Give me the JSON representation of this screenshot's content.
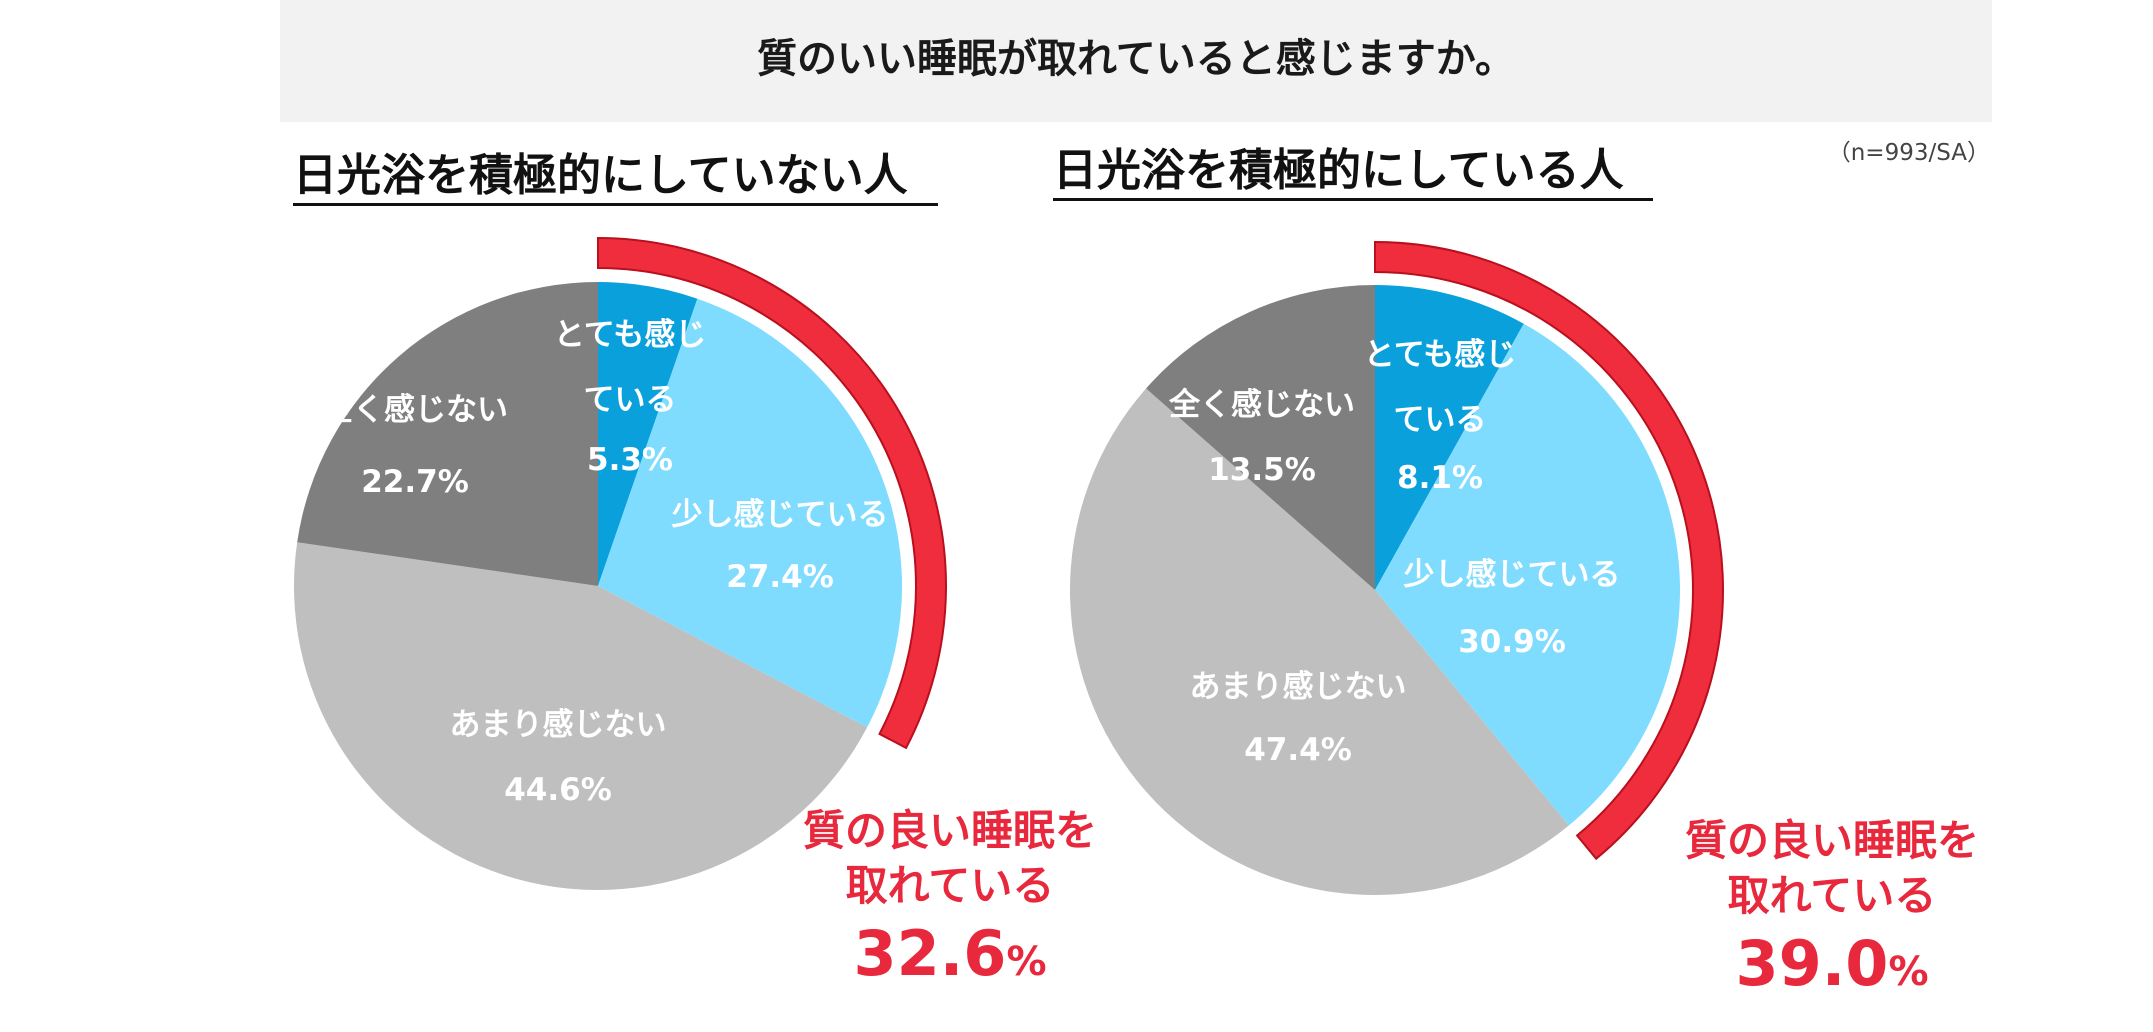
{
  "chart_data": {
    "type": "pie",
    "title": "質のいい睡眠が取れていると感じますか。",
    "sample_note": "（n=993/SA）",
    "colors": {
      "とても感じている": "#0aa0dc",
      "少し感じている": "#80dcff",
      "あまり感じない": "#bfbfbf",
      "全く感じない": "#7f7f7f",
      "highlight": "#f02d3c",
      "title_band": "#f2f2f2"
    },
    "charts": [
      {
        "title": "日光浴を積極的にしていない人",
        "slices": [
          {
            "label": "とても感じている",
            "label_lines": [
              "とても感じ",
              "ている"
            ],
            "value": 5.3,
            "value_text": "5.3%"
          },
          {
            "label": "少し感じている",
            "label_lines": [
              "少し感じている"
            ],
            "value": 27.4,
            "value_text": "27.4%"
          },
          {
            "label": "あまり感じない",
            "label_lines": [
              "あまり感じない"
            ],
            "value": 44.6,
            "value_text": "44.6%"
          },
          {
            "label": "全く感じない",
            "label_lines": [
              "全く感じない"
            ],
            "value": 22.7,
            "value_text": "22.7%"
          }
        ],
        "callout": {
          "line1": "質の良い睡眠を",
          "line2": "取れている",
          "value": "32.6",
          "unit": "%"
        }
      },
      {
        "title": "日光浴を積極的にしている人",
        "slices": [
          {
            "label": "とても感じている",
            "label_lines": [
              "とても感じ",
              "ている"
            ],
            "value": 8.1,
            "value_text": "8.1%"
          },
          {
            "label": "少し感じている",
            "label_lines": [
              "少し感じている"
            ],
            "value": 30.9,
            "value_text": "30.9%"
          },
          {
            "label": "あまり感じない",
            "label_lines": [
              "あまり感じない"
            ],
            "value": 47.4,
            "value_text": "47.4%"
          },
          {
            "label": "全く感じない",
            "label_lines": [
              "全く感じない"
            ],
            "value": 13.5,
            "value_text": "13.5%"
          }
        ],
        "callout": {
          "line1": "質の良い睡眠を",
          "line2": "取れている",
          "value": "39.0",
          "unit": "%"
        }
      }
    ]
  }
}
